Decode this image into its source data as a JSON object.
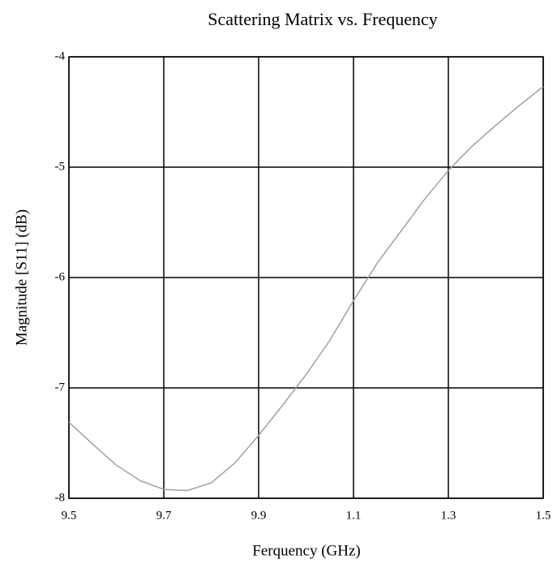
{
  "chart_data": {
    "type": "line",
    "title": "Scattering Matrix vs. Frequency",
    "xlabel": "Ferquency (GHz)",
    "ylabel": "Magnitude [S11] (dB)",
    "x": [
      9.5,
      9.55,
      9.6,
      9.65,
      9.7,
      9.75,
      9.8,
      9.85,
      9.9,
      9.95,
      10.0,
      10.05,
      10.1,
      10.15,
      10.2,
      10.25,
      10.3,
      10.35,
      10.4,
      10.45,
      10.5
    ],
    "values": [
      -7.31,
      -7.51,
      -7.7,
      -7.84,
      -7.92,
      -7.93,
      -7.86,
      -7.68,
      -7.43,
      -7.16,
      -6.88,
      -6.57,
      -6.21,
      -5.87,
      -5.58,
      -5.29,
      -5.03,
      -4.81,
      -4.62,
      -4.44,
      -4.27
    ],
    "color": "#a0a0a0",
    "xlim": [
      9.5,
      10.5
    ],
    "xticks": [
      9.5,
      9.7,
      9.9,
      {
        "value": 10.1,
        "label": "1.1"
      },
      {
        "value": 10.3,
        "label": "1.3"
      },
      {
        "value": 10.5,
        "label": "1.5"
      }
    ],
    "ylim": [
      -8,
      -4
    ],
    "yticks": [
      -8,
      -7,
      -6,
      -5,
      -4
    ],
    "grid": true
  }
}
